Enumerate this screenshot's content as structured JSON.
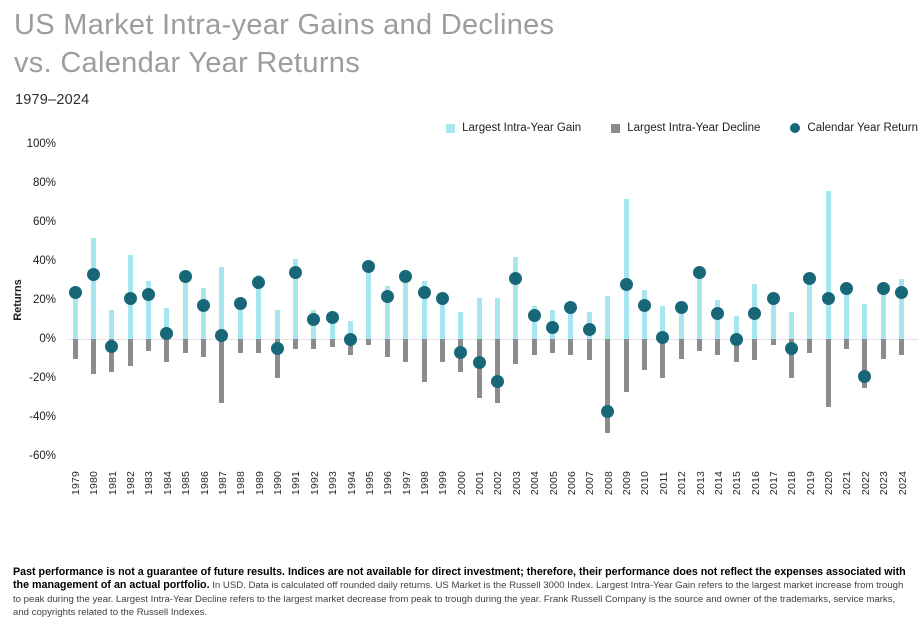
{
  "page": {
    "title_line1": "US Market Intra-year Gains and Declines",
    "title_line2": "vs. Calendar Year Returns",
    "subtitle": "1979–2024"
  },
  "colors": {
    "gain": "#A7E6EE",
    "decline": "#8C8C8C",
    "return_dot": "#186779",
    "zero_line": "#E2E2E2",
    "title_gray": "#9B9DA0"
  },
  "legend": {
    "items": [
      {
        "label": "Largest Intra-Year Gain",
        "marker": "square",
        "color": "#A7E6EE"
      },
      {
        "label": "Largest Intra-Year Decline",
        "marker": "square",
        "color": "#8C8C8C"
      },
      {
        "label": "Calendar Year Return",
        "marker": "circle",
        "color": "#186779"
      }
    ]
  },
  "chart_data": {
    "type": "bar",
    "title": "US Market Intra-year Gains and Declines vs. Calendar Year Returns",
    "subtitle": "1979–2024",
    "xlabel": "",
    "ylabel": "Returns",
    "ylim": [
      -60,
      100
    ],
    "ytick_step": 20,
    "ytick_suffix": "%",
    "grid": false,
    "legend_position": "top-right",
    "categories": [
      1979,
      1980,
      1981,
      1982,
      1983,
      1984,
      1985,
      1986,
      1987,
      1988,
      1989,
      1990,
      1991,
      1992,
      1993,
      1994,
      1995,
      1996,
      1997,
      1998,
      1999,
      2000,
      2001,
      2002,
      2003,
      2004,
      2005,
      2006,
      2007,
      2008,
      2009,
      2010,
      2011,
      2012,
      2013,
      2014,
      2015,
      2016,
      2017,
      2018,
      2019,
      2020,
      2021,
      2022,
      2023,
      2024
    ],
    "series": [
      {
        "name": "Largest Intra-Year Gain",
        "render": "bar",
        "color": "#A7E6EE",
        "values": [
          25,
          52,
          15,
          43,
          30,
          16,
          32,
          26,
          37,
          18,
          33,
          15,
          41,
          15,
          12,
          9,
          36,
          27,
          33,
          30,
          22,
          14,
          21,
          21,
          42,
          17,
          15,
          19,
          14,
          22,
          72,
          25,
          17,
          18,
          34,
          20,
          12,
          28,
          23,
          14,
          34,
          76,
          26,
          18,
          26,
          31
        ]
      },
      {
        "name": "Largest Intra-Year Decline",
        "render": "bar",
        "color": "#8C8C8C",
        "values": [
          -10,
          -18,
          -17,
          -14,
          -6,
          -12,
          -7,
          -9,
          -33,
          -7,
          -7,
          -20,
          -5,
          -5,
          -4,
          -8,
          -3,
          -9,
          -12,
          -22,
          -12,
          -17,
          -30,
          -33,
          -13,
          -8,
          -7,
          -8,
          -11,
          -48,
          -27,
          -16,
          -20,
          -10,
          -6,
          -8,
          -12,
          -11,
          -3,
          -20,
          -7,
          -35,
          -5,
          -25,
          -10,
          -8
        ]
      },
      {
        "name": "Calendar Year Return",
        "render": "scatter",
        "color": "#186779",
        "values": [
          24,
          33,
          -4,
          21,
          23,
          3,
          32,
          17,
          2,
          18,
          29,
          -5,
          34,
          10,
          11,
          0,
          37,
          22,
          32,
          24,
          21,
          -7,
          -12,
          -22,
          31,
          12,
          6,
          16,
          5,
          -37,
          28,
          17,
          1,
          16,
          34,
          13,
          0,
          13,
          21,
          -5,
          31,
          21,
          26,
          -19,
          26,
          24
        ]
      }
    ]
  },
  "footer": {
    "bold": "Past performance is not a guarantee of future results. Indices are not available for direct investment; therefore, their performance does not reflect the expenses associated with the management of an actual portfolio.",
    "regular": "In USD. Data is calculated off rounded daily returns. US Market is the Russell 3000 Index. Largest Intra-Year Gain refers to the largest market increase from trough to peak during the year. Largest Intra-Year Decline refers to the largest market decrease from peak to trough during the year. Frank Russell Company is the source and owner of the trademarks, service marks, and copyrights related to the Russell Indexes."
  }
}
